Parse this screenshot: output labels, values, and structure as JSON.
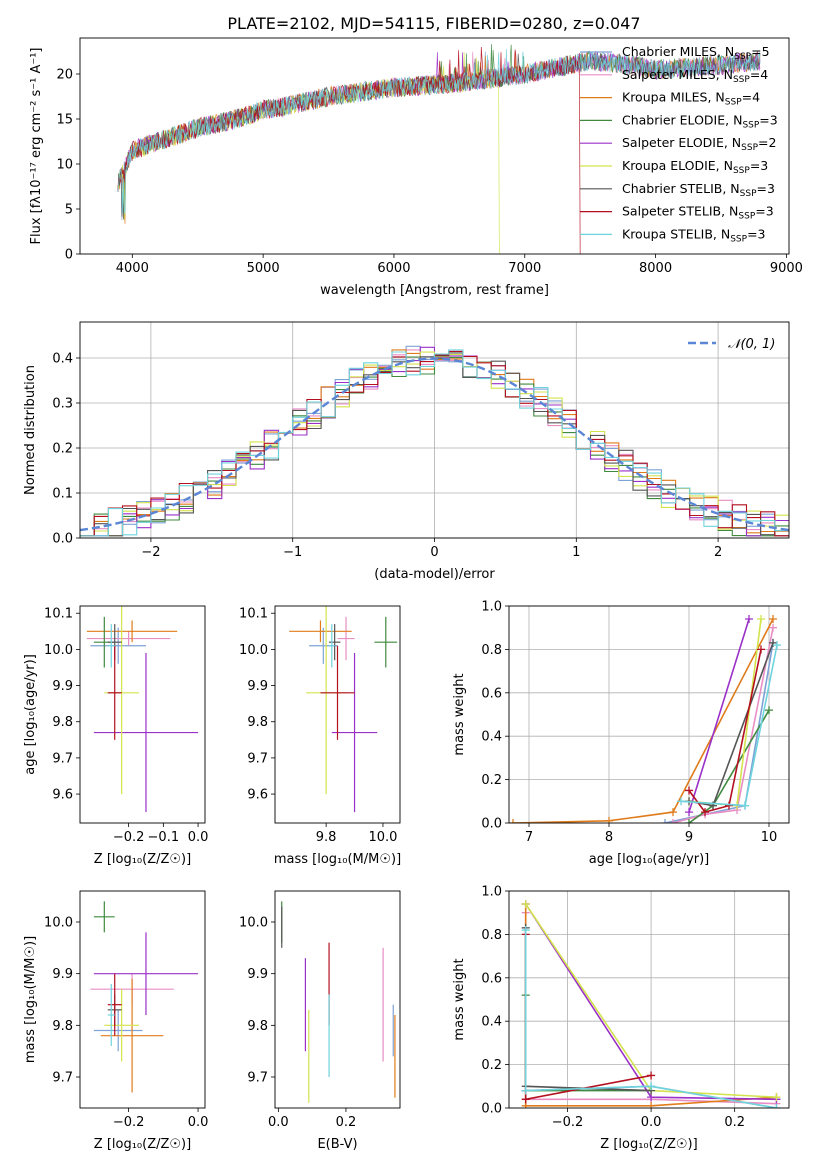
{
  "title": "PLATE=2102, MJD=54115, FIBERID=0280, z=0.047",
  "colors": {
    "Chabrier MILES": "#7fa2d6",
    "Salpeter MILES": "#e88ec5",
    "Kroupa MILES": "#e07b1a",
    "Chabrier ELODIE": "#3f8a3f",
    "Salpeter ELODIE": "#9b30c8",
    "Kroupa ELODIE": "#d3e34d",
    "Chabrier STELIB": "#555555",
    "Salpeter STELIB": "#b40f1e",
    "Kroupa STELIB": "#6fd3dd"
  },
  "chart_data": [
    {
      "id": "spectrum",
      "type": "line",
      "xlabel": "wavelength [Angstrom, rest frame]",
      "ylabel": "Flux [fλ10⁻¹⁷ erg cm⁻² s⁻¹ A⁻¹]",
      "xlim": [
        3600,
        9020
      ],
      "ylim": [
        0,
        24
      ],
      "xticks": [
        4000,
        5000,
        6000,
        7000,
        8000,
        9000
      ],
      "yticks": [
        0,
        5,
        10,
        15,
        20
      ],
      "grid": false,
      "legend": "right",
      "continuum": [
        [
          3890,
          8
        ],
        [
          3930,
          9
        ],
        [
          4000,
          11.5
        ],
        [
          4200,
          12.5
        ],
        [
          4500,
          14
        ],
        [
          4800,
          15
        ],
        [
          5000,
          16
        ],
        [
          5200,
          16.5
        ],
        [
          5500,
          17.5
        ],
        [
          6000,
          18.5
        ],
        [
          6500,
          19
        ],
        [
          7000,
          20
        ],
        [
          7500,
          21.5
        ],
        [
          7800,
          21
        ],
        [
          8000,
          20.5
        ],
        [
          8500,
          21
        ],
        [
          8800,
          21.5
        ]
      ],
      "dropouts": [
        {
          "model": "Kroupa ELODIE",
          "x": 6800
        },
        {
          "model": "Salpeter STELIB",
          "x": 7420
        }
      ],
      "series": [
        {
          "name": "Chabrier MILES",
          "nssp": 5
        },
        {
          "name": "Salpeter MILES",
          "nssp": 4
        },
        {
          "name": "Kroupa MILES",
          "nssp": 4
        },
        {
          "name": "Chabrier ELODIE",
          "nssp": 3
        },
        {
          "name": "Salpeter ELODIE",
          "nssp": 2
        },
        {
          "name": "Kroupa ELODIE",
          "nssp": 3
        },
        {
          "name": "Chabrier STELIB",
          "nssp": 3
        },
        {
          "name": "Salpeter STELIB",
          "nssp": 3
        },
        {
          "name": "Kroupa STELIB",
          "nssp": 3
        }
      ],
      "legend_prefix": "N",
      "legend_sub": "SSP"
    },
    {
      "id": "residuals",
      "type": "histogram",
      "xlabel": "(data-model)/error",
      "ylabel": "Normed distribution",
      "xlim": [
        -2.5,
        2.5
      ],
      "ylim": [
        0,
        0.48
      ],
      "xticks": [
        -2,
        -1,
        0,
        1,
        2
      ],
      "yticks": [
        0,
        0.1,
        0.2,
        0.3,
        0.4
      ],
      "grid": true,
      "legend": "top-right",
      "bin_width": 0.1,
      "reference": {
        "label": "𝒩(0, 1)",
        "mu": 0,
        "sigma": 1
      }
    },
    {
      "id": "z-age",
      "type": "errorbar",
      "xlabel": "Z [log₁₀(Z/Z☉)]",
      "ylabel": "age  [log₁₀(age/yr)]",
      "xlim": [
        -0.34,
        0.02
      ],
      "ylim": [
        9.52,
        10.12
      ],
      "xticks": [
        -0.2,
        -0.1,
        0.0
      ],
      "yticks": [
        9.6,
        9.7,
        9.8,
        9.9,
        10.0,
        10.1
      ],
      "points": [
        {
          "model": "Chabrier MILES",
          "x": -0.23,
          "y": 10.01,
          "xerr": 0.08,
          "yerr": 0.05
        },
        {
          "model": "Salpeter MILES",
          "x": -0.2,
          "y": 10.03,
          "xerr": 0.12,
          "yerr": 0.02
        },
        {
          "model": "Kroupa MILES",
          "x": -0.19,
          "y": 10.05,
          "xerr": 0.13,
          "yerr": 0.03
        },
        {
          "model": "Chabrier ELODIE",
          "x": -0.27,
          "y": 10.02,
          "xerr": 0.03,
          "yerr": 0.07
        },
        {
          "model": "Salpeter ELODIE",
          "x": -0.15,
          "y": 9.77,
          "xerr": 0.15,
          "yerr": 0.22
        },
        {
          "model": "Kroupa ELODIE",
          "x": -0.22,
          "y": 9.88,
          "xerr": 0.05,
          "yerr": 0.28
        },
        {
          "model": "Chabrier STELIB",
          "x": -0.24,
          "y": 10.02,
          "xerr": 0.02,
          "yerr": 0.05
        },
        {
          "model": "Salpeter STELIB",
          "x": -0.24,
          "y": 9.88,
          "xerr": 0.02,
          "yerr": 0.13
        },
        {
          "model": "Kroupa STELIB",
          "x": -0.25,
          "y": 10.01,
          "xerr": 0.01,
          "yerr": 0.06
        }
      ]
    },
    {
      "id": "mass-age",
      "type": "errorbar",
      "xlabel": "mass [log₁₀(M/M☉)]",
      "ylabel": "",
      "xlim": [
        9.62,
        10.06
      ],
      "ylim": [
        9.52,
        10.12
      ],
      "xticks": [
        9.8,
        10.0
      ],
      "yticks": [
        9.6,
        9.7,
        9.8,
        9.9,
        10.0,
        10.1
      ],
      "points": [
        {
          "model": "Chabrier MILES",
          "x": 9.79,
          "y": 10.01,
          "xerr": 0.05,
          "yerr": 0.05
        },
        {
          "model": "Salpeter MILES",
          "x": 9.87,
          "y": 10.03,
          "xerr": 0.03,
          "yerr": 0.06
        },
        {
          "model": "Kroupa MILES",
          "x": 9.78,
          "y": 10.05,
          "xerr": 0.11,
          "yerr": 0.03
        },
        {
          "model": "Chabrier ELODIE",
          "x": 10.01,
          "y": 10.02,
          "xerr": 0.04,
          "yerr": 0.07
        },
        {
          "model": "Salpeter ELODIE",
          "x": 9.9,
          "y": 9.77,
          "xerr": 0.08,
          "yerr": 0.22
        },
        {
          "model": "Kroupa ELODIE",
          "x": 9.8,
          "y": 9.88,
          "xerr": 0.07,
          "yerr": 0.28
        },
        {
          "model": "Chabrier STELIB",
          "x": 9.83,
          "y": 10.02,
          "xerr": 0.02,
          "yerr": 0.05
        },
        {
          "model": "Salpeter STELIB",
          "x": 9.84,
          "y": 9.88,
          "xerr": 0.06,
          "yerr": 0.13
        },
        {
          "model": "Kroupa STELIB",
          "x": 9.82,
          "y": 10.01,
          "xerr": 0.01,
          "yerr": 0.06
        }
      ]
    },
    {
      "id": "age-weight",
      "type": "line",
      "xlabel": "age  [log₁₀(age/yr)]",
      "ylabel": "mass weight",
      "xlim": [
        6.75,
        10.25
      ],
      "ylim": [
        0,
        1
      ],
      "xticks": [
        7,
        8,
        9,
        10
      ],
      "yticks": [
        0.0,
        0.2,
        0.4,
        0.6,
        0.8,
        1.0
      ],
      "grid": true,
      "series": [
        {
          "model": "Chabrier MILES",
          "points": [
            [
              8.7,
              0.0
            ],
            [
              9.7,
              0.08
            ],
            [
              10.05,
              0.83
            ]
          ]
        },
        {
          "model": "Salpeter MILES",
          "points": [
            [
              8.8,
              0.0
            ],
            [
              9.2,
              0.04
            ],
            [
              9.6,
              0.06
            ],
            [
              10.05,
              0.9
            ]
          ]
        },
        {
          "model": "Kroupa MILES",
          "points": [
            [
              6.8,
              0.0
            ],
            [
              8.0,
              0.01
            ],
            [
              8.8,
              0.05
            ],
            [
              10.05,
              0.94
            ]
          ]
        },
        {
          "model": "Chabrier ELODIE",
          "points": [
            [
              9.0,
              0.0
            ],
            [
              9.3,
              0.08
            ],
            [
              10.0,
              0.52
            ]
          ]
        },
        {
          "model": "Salpeter ELODIE",
          "points": [
            [
              9.0,
              0.05
            ],
            [
              9.75,
              0.94
            ]
          ]
        },
        {
          "model": "Kroupa ELODIE",
          "points": [
            [
              9.0,
              0.1
            ],
            [
              9.6,
              0.08
            ],
            [
              9.9,
              0.94
            ]
          ]
        },
        {
          "model": "Chabrier STELIB",
          "points": [
            [
              9.0,
              0.1
            ],
            [
              9.3,
              0.08
            ],
            [
              10.05,
              0.83
            ]
          ]
        },
        {
          "model": "Salpeter STELIB",
          "points": [
            [
              9.0,
              0.15
            ],
            [
              9.2,
              0.05
            ],
            [
              9.5,
              0.08
            ],
            [
              9.9,
              0.8
            ]
          ]
        },
        {
          "model": "Kroupa STELIB",
          "points": [
            [
              8.9,
              0.1
            ],
            [
              9.7,
              0.08
            ],
            [
              10.1,
              0.82
            ]
          ]
        }
      ]
    },
    {
      "id": "z-mass",
      "type": "errorbar",
      "xlabel": "Z [log₁₀(Z/Z☉)]",
      "ylabel": "mass [log₁₀(M/M☉)]",
      "xlim": [
        -0.34,
        0.02
      ],
      "ylim": [
        9.64,
        10.06
      ],
      "xticks": [
        -0.2,
        0.0
      ],
      "yticks": [
        9.7,
        9.8,
        9.9,
        10.0
      ],
      "points": [
        {
          "model": "Chabrier MILES",
          "x": -0.23,
          "y": 9.79,
          "xerr": 0.07,
          "yerr": 0.04
        },
        {
          "model": "Salpeter MILES",
          "x": -0.19,
          "y": 9.87,
          "xerr": 0.12,
          "yerr": 0.03
        },
        {
          "model": "Kroupa MILES",
          "x": -0.19,
          "y": 9.78,
          "xerr": 0.09,
          "yerr": 0.11
        },
        {
          "model": "Chabrier ELODIE",
          "x": -0.27,
          "y": 10.01,
          "xerr": 0.03,
          "yerr": 0.03
        },
        {
          "model": "Salpeter ELODIE",
          "x": -0.15,
          "y": 9.9,
          "xerr": 0.15,
          "yerr": 0.08
        },
        {
          "model": "Kroupa ELODIE",
          "x": -0.22,
          "y": 9.8,
          "xerr": 0.05,
          "yerr": 0.07
        },
        {
          "model": "Chabrier STELIB",
          "x": -0.24,
          "y": 9.83,
          "xerr": 0.02,
          "yerr": 0.03
        },
        {
          "model": "Salpeter STELIB",
          "x": -0.24,
          "y": 9.84,
          "xerr": 0.02,
          "yerr": 0.06
        },
        {
          "model": "Kroupa STELIB",
          "x": -0.25,
          "y": 9.82,
          "xerr": 0.01,
          "yerr": 0.06
        }
      ]
    },
    {
      "id": "ebv-mass",
      "type": "errorbar",
      "xlabel": "E(B-V)",
      "ylabel": "",
      "xlim": [
        -0.01,
        0.36
      ],
      "ylim": [
        9.64,
        10.06
      ],
      "xticks": [
        0.0,
        0.2
      ],
      "yticks": [
        9.7,
        9.8,
        9.9,
        10.0
      ],
      "points": [
        {
          "model": "Chabrier MILES",
          "x": 0.34,
          "y": 9.79,
          "xerr": 0.0,
          "yerr": 0.05
        },
        {
          "model": "Salpeter MILES",
          "x": 0.31,
          "y": 9.84,
          "xerr": 0.0,
          "yerr": 0.11
        },
        {
          "model": "Kroupa MILES",
          "x": 0.345,
          "y": 9.74,
          "xerr": 0.0,
          "yerr": 0.08
        },
        {
          "model": "Chabrier ELODIE",
          "x": 0.01,
          "y": 10.0,
          "xerr": 0.0,
          "yerr": 0.04
        },
        {
          "model": "Salpeter ELODIE",
          "x": 0.08,
          "y": 9.84,
          "xerr": 0.0,
          "yerr": 0.09
        },
        {
          "model": "Kroupa ELODIE",
          "x": 0.09,
          "y": 9.74,
          "xerr": 0.0,
          "yerr": 0.09
        },
        {
          "model": "Chabrier STELIB",
          "x": 0.01,
          "y": 9.99,
          "xerr": 0.0,
          "yerr": 0.04
        },
        {
          "model": "Salpeter STELIB",
          "x": 0.15,
          "y": 9.88,
          "xerr": 0.0,
          "yerr": 0.08
        },
        {
          "model": "Kroupa STELIB",
          "x": 0.15,
          "y": 9.78,
          "xerr": 0.0,
          "yerr": 0.08
        }
      ]
    },
    {
      "id": "z-weight",
      "type": "line",
      "xlabel": "Z [log₁₀(Z/Z☉)]",
      "ylabel": "mass weight",
      "xlim": [
        -0.34,
        0.33
      ],
      "ylim": [
        0,
        1
      ],
      "xticks": [
        -0.2,
        0.0,
        0.2
      ],
      "yticks": [
        0.0,
        0.2,
        0.4,
        0.6,
        0.8,
        1.0
      ],
      "grid": true,
      "series": [
        {
          "model": "Chabrier MILES",
          "points": [
            [
              -0.3,
              0.83
            ],
            [
              -0.3,
              0.08
            ],
            [
              0.0,
              0.1
            ],
            [
              0.3,
              0.0
            ]
          ]
        },
        {
          "model": "Salpeter MILES",
          "points": [
            [
              -0.3,
              0.9
            ],
            [
              -0.3,
              0.04
            ],
            [
              0.0,
              0.04
            ],
            [
              0.3,
              0.02
            ]
          ]
        },
        {
          "model": "Kroupa MILES",
          "points": [
            [
              -0.3,
              0.94
            ],
            [
              -0.3,
              0.01
            ],
            [
              0.0,
              0.01
            ],
            [
              0.3,
              0.05
            ]
          ]
        },
        {
          "model": "Chabrier ELODIE",
          "points": [
            [
              -0.3,
              0.52
            ],
            [
              -0.3,
              0.08
            ],
            [
              0.0,
              0.08
            ]
          ]
        },
        {
          "model": "Salpeter ELODIE",
          "points": [
            [
              -0.3,
              0.94
            ],
            [
              0.0,
              0.05
            ],
            [
              0.3,
              0.04
            ]
          ]
        },
        {
          "model": "Kroupa ELODIE",
          "points": [
            [
              -0.3,
              0.94
            ],
            [
              0.0,
              0.08
            ],
            [
              0.3,
              0.05
            ]
          ]
        },
        {
          "model": "Chabrier STELIB",
          "points": [
            [
              -0.3,
              0.83
            ],
            [
              -0.3,
              0.1
            ],
            [
              0.0,
              0.08
            ]
          ]
        },
        {
          "model": "Salpeter STELIB",
          "points": [
            [
              -0.3,
              0.8
            ],
            [
              -0.3,
              0.04
            ],
            [
              0.0,
              0.15
            ]
          ]
        },
        {
          "model": "Kroupa STELIB",
          "points": [
            [
              -0.3,
              0.82
            ],
            [
              -0.3,
              0.08
            ],
            [
              0.0,
              0.1
            ],
            [
              0.3,
              0.0
            ]
          ]
        }
      ]
    }
  ]
}
